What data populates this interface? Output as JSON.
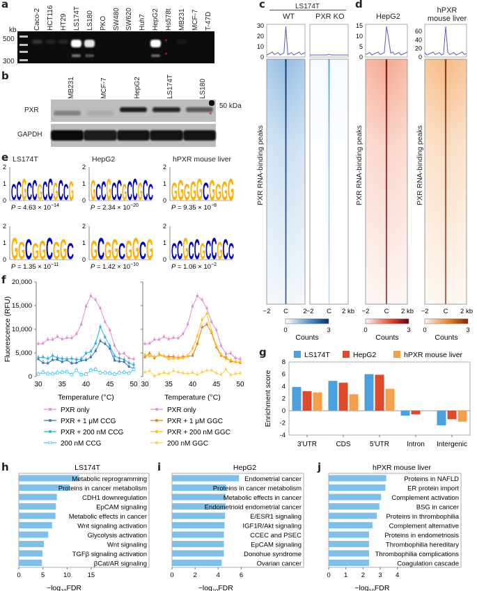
{
  "panels": {
    "a": {
      "label": "a",
      "unit": "kb",
      "markers": [
        "500",
        "300"
      ],
      "lanes": [
        "Caco-2",
        "HCT116",
        "HT29",
        "LS174T",
        "LS180",
        "PKO",
        "SW480",
        "SW620",
        "Huh7",
        "HepG2",
        "Hs578t",
        "MB231",
        "MCF-7",
        "T-47D"
      ],
      "band_intensity_upper": [
        0.18,
        0.1,
        0.12,
        1.0,
        0.9,
        0,
        0,
        0,
        0,
        1.0,
        0,
        0.05,
        0,
        0
      ],
      "band_intensity_lower": [
        0,
        0,
        0,
        0.45,
        0.3,
        0,
        0,
        0,
        0,
        0.4,
        0,
        0,
        0,
        0
      ],
      "asterisk_lane": "Hs578t",
      "asterisk_color": "#e02020"
    },
    "b": {
      "label": "b",
      "lanes": [
        "MB231",
        "MCF-7",
        "HepG2",
        "LS174T",
        "LS180"
      ],
      "rows": [
        "PXR",
        "GAPDH"
      ],
      "size_marker": "50 kDa",
      "pxr_intensity": [
        0.35,
        0.1,
        0.95,
        0.9,
        0.6
      ],
      "gapdh_intensity": [
        1,
        0.9,
        0.95,
        0.95,
        0.95
      ]
    },
    "c": {
      "label": "c",
      "group": "LS174T",
      "columns": [
        "WT",
        "PXR KO"
      ],
      "yticks": [
        "30",
        "20",
        "10",
        "0"
      ],
      "y_axis_label": "PXR RNA-binding peaks",
      "xticks": [
        "−2",
        "C",
        "2",
        "−2",
        "C",
        "2 kb"
      ],
      "colorbar": {
        "min": "0",
        "max": "3",
        "label": "Counts",
        "color_low": "#ffffff",
        "color_high": "#08306b"
      },
      "profile_peak": 30,
      "accent": "#1f5fa8"
    },
    "d": {
      "label": "d",
      "columns": [
        "HepG2",
        "hPXR mouse liver"
      ],
      "yticks_hepg2": [
        "15",
        "10",
        "5",
        "0"
      ],
      "yticks_mouse": [
        "60",
        "40",
        "20",
        "0"
      ],
      "y_axis_label": "PXR RNA-binding peaks",
      "xticks": [
        "−2",
        "C",
        "2 kb",
        "−2",
        "C",
        "2 kb"
      ],
      "colorbar_hepg2": {
        "min": "0",
        "max": "3",
        "label": "Counts",
        "color_low": "#fff5f0",
        "color_high": "#67000d"
      },
      "colorbar_mouse": {
        "min": "0",
        "max": "3",
        "label": "Counts",
        "color_low": "#fff5eb",
        "color_high": "#7f2704"
      }
    },
    "e": {
      "label": "e",
      "yticks": [
        "2",
        "1",
        "0"
      ],
      "motifs": [
        {
          "title": "LS174T",
          "seq": "CCGCCGCCGCCG",
          "p": "P = 4.63 × 10",
          "exp": "−14"
        },
        {
          "title": "HepG2",
          "seq": "GCCGCCGCCGCC",
          "p": "P = 2.34 × 10",
          "exp": "−20"
        },
        {
          "title": "hPXR mouse liver",
          "seq": "GGGGGCGGGG",
          "p": "P = 9.35 × 10",
          "exp": "−8"
        },
        {
          "title": "",
          "seq": "GGCGGCGGC",
          "p": "P = 1.35 × 10",
          "exp": "−11"
        },
        {
          "title": "",
          "seq": "GCGGCGGCG",
          "p": "P = 1.42 × 10",
          "exp": "−10"
        },
        {
          "title": "",
          "seq": "CCGCCGCCGCC",
          "p": "P = 1.06 × 10",
          "exp": "−2"
        }
      ],
      "colors": {
        "C": "#0000c0",
        "G": "#ffb000",
        "A": "#d01010",
        "U": "#10a010"
      }
    },
    "g": {
      "label": "g"
    },
    "h": {
      "label": "h"
    },
    "i": {
      "label": "i"
    },
    "j": {
      "label": "j"
    },
    "f": {
      "label": "f"
    }
  },
  "chart_data": [
    {
      "id": "f-left",
      "type": "line",
      "title": "",
      "xlabel": "Temperature (°C)",
      "ylabel": "Fluorescence (RFU)",
      "xlim": [
        30,
        50
      ],
      "ylim": [
        0,
        20000
      ],
      "xticks": [
        "30",
        "35",
        "40",
        "45",
        "50"
      ],
      "yticks": [
        "0",
        "5,000",
        "10,000",
        "15,000",
        "20,000"
      ],
      "x": [
        30,
        31,
        32,
        33,
        34,
        35,
        36,
        37,
        38,
        39,
        40,
        41,
        42,
        43,
        44,
        45,
        46,
        47,
        48,
        49,
        50
      ],
      "series": [
        {
          "name": "PXR only",
          "color": "#e08fd0",
          "marker": "dot",
          "values": [
            6900,
            7000,
            7800,
            7800,
            8400,
            7900,
            8200,
            8100,
            9000,
            11000,
            14800,
            17000,
            16200,
            14400,
            11500,
            9800,
            6500,
            4800,
            4900,
            3900,
            3700
          ]
        },
        {
          "name": "PXR + 1 μM CCG",
          "color": "#3a6fc0",
          "marker": "square",
          "values": [
            3700,
            2900,
            2800,
            3500,
            3600,
            3100,
            3500,
            2800,
            2900,
            3400,
            3500,
            4100,
            5400,
            7500,
            6900,
            5900,
            3400,
            3200,
            3100,
            2100,
            1700
          ]
        },
        {
          "name": "PXR + 200 nM CCG",
          "color": "#2ab0e8",
          "marker": "square",
          "values": [
            4000,
            4100,
            3800,
            4400,
            4000,
            3800,
            3700,
            3800,
            3600,
            3700,
            4900,
            5300,
            7000,
            10500,
            8300,
            6500,
            4300,
            3900,
            3600,
            2900,
            2500
          ]
        },
        {
          "name": "200 nM CCG",
          "color": "#40c8f0",
          "marker": "open-square",
          "values": [
            500,
            900,
            600,
            600,
            800,
            900,
            1000,
            400,
            1300,
            400,
            500,
            1300,
            1500,
            800,
            800,
            700,
            500,
            800,
            900,
            700,
            1500
          ]
        }
      ],
      "legend_position": "bottom"
    },
    {
      "id": "f-right",
      "type": "line",
      "xlabel": "Temperature (°C)",
      "ylabel": "",
      "xlim": [
        30,
        50
      ],
      "ylim": [
        0,
        20000
      ],
      "xticks": [
        "30",
        "35",
        "40",
        "45",
        "50"
      ],
      "x": [
        30,
        31,
        32,
        33,
        34,
        35,
        36,
        37,
        38,
        39,
        40,
        41,
        42,
        43,
        44,
        45,
        46,
        47,
        48,
        49,
        50
      ],
      "series": [
        {
          "name": "PXR only",
          "color": "#e08fd0",
          "values": [
            6900,
            7000,
            7800,
            7800,
            8400,
            7900,
            8200,
            8100,
            9000,
            11000,
            14800,
            17000,
            16200,
            14400,
            11500,
            9800,
            6500,
            4800,
            4900,
            3900,
            3700
          ]
        },
        {
          "name": "PXR + 1 μM GGC",
          "color": "#f07a10",
          "values": [
            4100,
            4900,
            3900,
            4700,
            4300,
            4200,
            4200,
            4000,
            4200,
            4300,
            4400,
            6900,
            10400,
            11000,
            9200,
            6200,
            4400,
            4100,
            3200,
            3100,
            2900
          ]
        },
        {
          "name": "PXR + 200 nM GGC",
          "color": "#ffc020",
          "values": [
            4600,
            4300,
            4200,
            4500,
            4300,
            3700,
            3800,
            3800,
            3900,
            4400,
            5900,
            8500,
            12000,
            13300,
            9500,
            6500,
            4600,
            3700,
            3500,
            3000,
            3100
          ]
        },
        {
          "name": "200 nM GGC",
          "color": "#ffd050",
          "values": [
            900,
            1200,
            100,
            500,
            800,
            600,
            1200,
            900,
            700,
            600,
            800,
            400,
            900,
            1300,
            1300,
            700,
            400,
            1500,
            300,
            600,
            700
          ]
        }
      ],
      "legend_position": "bottom"
    },
    {
      "id": "g",
      "type": "bar",
      "xlabel": "",
      "ylabel": "Enrichment score",
      "ylim": [
        -4,
        8
      ],
      "yticks": [
        "-4",
        "-2",
        "0",
        "2",
        "4",
        "6",
        "8"
      ],
      "categories": [
        "3'UTR",
        "CDS",
        "5'UTR",
        "Intron",
        "Intergenic"
      ],
      "series": [
        {
          "name": "LS174T",
          "color": "#4aa0dc",
          "values": [
            3.9,
            4.9,
            6.0,
            -0.8,
            -2.4
          ]
        },
        {
          "name": "HepG2",
          "color": "#e04a2c",
          "values": [
            3.2,
            4.6,
            5.9,
            -0.6,
            -1.4
          ]
        },
        {
          "name": "hPXR mouse liver",
          "color": "#f4a04a",
          "values": [
            3.0,
            2.7,
            3.6,
            0,
            -1.8
          ]
        }
      ],
      "legend_position": "top"
    },
    {
      "id": "h",
      "type": "bar",
      "orientation": "horizontal",
      "title": "LS174T",
      "xlabel": "−log",
      "xlabel_sub": "10",
      "xlabel_tail": "FDR",
      "xlim": [
        0,
        27
      ],
      "xticks": [
        0,
        5,
        10,
        15
      ],
      "color": "#7ec0ea",
      "categories": [
        "Metabolic reprogramming",
        "Proteins in cancer metabolism",
        "CDH1 downregulation",
        "EpCAM signaling",
        "Metabolic effects in cancer",
        "Wnt signaling activation",
        "Glycolysis activation",
        "Wnt signaling",
        "TGFβ signaling activation",
        "βCat/AR signaling"
      ],
      "values": [
        12.5,
        10.5,
        7.9,
        7.7,
        7.6,
        6.9,
        6.1,
        5.2,
        4.9,
        4.8
      ]
    },
    {
      "id": "i",
      "type": "bar",
      "orientation": "horizontal",
      "title": "HepG2",
      "xlabel": "−log",
      "xlabel_sub": "10",
      "xlabel_tail": "FDR",
      "xlim": [
        0,
        11.4
      ],
      "xticks": [
        0,
        2,
        4,
        6
      ],
      "color": "#7ec0ea",
      "categories": [
        "Endometrial cancer",
        "Proteins in cancer metabolism",
        "Metabolic effects in cancer",
        "Endometrioid endometrial cancer",
        "E/ESR1 signaling",
        "IGF1R/Akt signaling",
        "CCEC and PSEC",
        "EpCAM signaling",
        "Donohue syndrome",
        "Ovarian cancer"
      ],
      "values": [
        5.8,
        4.7,
        4.65,
        4.65,
        4.6,
        4.55,
        4.5,
        4.5,
        4.5,
        4.3
      ]
    },
    {
      "id": "j",
      "type": "bar",
      "orientation": "horizontal",
      "title": "hPXR mouse liver",
      "xlabel": "−log",
      "xlabel_sub": "10",
      "xlabel_tail": "FDR",
      "xlim": [
        0,
        7.7
      ],
      "xticks": [
        0,
        1,
        2,
        3,
        4
      ],
      "color": "#7ec0ea",
      "categories": [
        "Proteins in NAFLD",
        "ER protein import",
        "Complement activation",
        "BSG in cancer",
        "Proteins in thrombophilia",
        "Complement alternative",
        "Proteins in endometriosis",
        "Thrombophilia hereditary",
        "Thrombophilia complications",
        "Coagulation cascade"
      ],
      "values": [
        3.35,
        3.3,
        3.05,
        2.95,
        2.8,
        2.55,
        2.35,
        2.35,
        2.35,
        2.35
      ]
    }
  ]
}
